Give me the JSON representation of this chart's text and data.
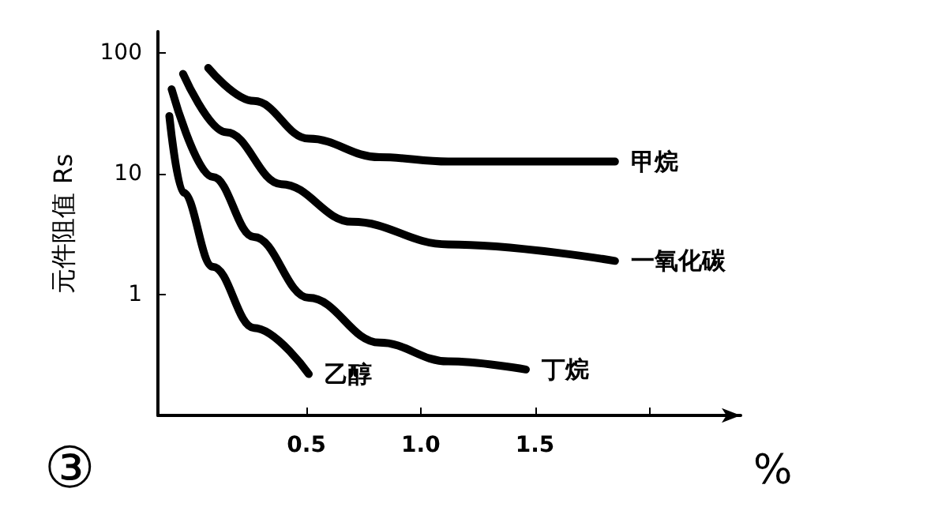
{
  "chart_data": {
    "type": "line",
    "ylabel": "元件阻值 Rs",
    "xlabel": "%",
    "annotations": [
      "③"
    ],
    "log": "y",
    "grid": false,
    "legend": false,
    "marker": "none",
    "line_style": "solid",
    "xlim": [
      -0.15,
      2.4
    ],
    "xticks": [
      0.5,
      {
        "value": 1.0,
        "label": "1.0"
      },
      1.5,
      {
        "value": 2.0,
        "label": null
      }
    ],
    "ylim": [
      0.1,
      150
    ],
    "yticks": [
      1,
      10,
      100
    ],
    "series": [
      {
        "name": "甲烷",
        "color": "#000000",
        "x": [
          0.07,
          0.27,
          0.51,
          0.82,
          1.12,
          1.85
        ],
        "values": [
          75,
          40,
          19.5,
          13.7,
          12.6,
          12.6
        ]
      },
      {
        "name": "一氧化碳",
        "color": "#000000",
        "x": [
          -0.04,
          0.15,
          0.39,
          0.7,
          1.12,
          1.85
        ],
        "values": [
          67,
          22,
          8.2,
          4,
          2.6,
          1.9
        ]
      },
      {
        "name": "丁烷",
        "color": "#000000",
        "x": [
          -0.09,
          0.09,
          0.27,
          0.51,
          0.82,
          1.12,
          1.46
        ],
        "values": [
          50,
          9.4,
          3,
          0.94,
          0.4,
          0.28,
          0.24
        ]
      },
      {
        "name": "乙醇",
        "color": "#000000",
        "x": [
          -0.1,
          -0.04,
          0.09,
          0.27,
          0.51
        ],
        "values": [
          30,
          7,
          1.7,
          0.53,
          0.22
        ]
      }
    ]
  }
}
